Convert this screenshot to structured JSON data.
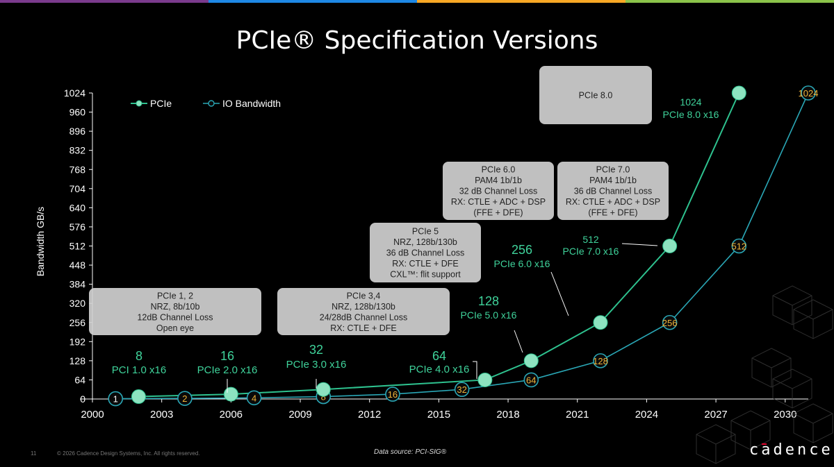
{
  "title": "PCIe® Specification Versions",
  "colors": {
    "topbar": [
      "#7a3a8c",
      "#1e88e5",
      "#f9a825",
      "#8bc34a"
    ],
    "pcie_series": "#2ec28f",
    "pcie_marker": "#8de3c0",
    "io_series": "#2aa7b6",
    "io_label": "#f0b43a",
    "annotation_green": "#3fd39b",
    "callout_bg": "#d0d0d0",
    "callout_text": "#222222"
  },
  "chart_data": {
    "type": "line",
    "title": "PCIe® Specification Versions",
    "xlabel": "",
    "ylabel": "Bandwidth GB/s",
    "xlim": [
      2000,
      2031
    ],
    "ylim": [
      0,
      1024
    ],
    "xticks": [
      2000,
      2003,
      2006,
      2009,
      2012,
      2015,
      2018,
      2021,
      2024,
      2027,
      2030
    ],
    "yticks": [
      0,
      64,
      128,
      192,
      256,
      320,
      384,
      448,
      512,
      576,
      640,
      704,
      768,
      832,
      896,
      960,
      1024
    ],
    "grid": false,
    "legend_position": "top-left",
    "series": [
      {
        "name": "PCIe",
        "x": [
          2002,
          2006,
          2010,
          2017,
          2019,
          2022,
          2025,
          2028
        ],
        "y": [
          8,
          16,
          32,
          64,
          128,
          256,
          512,
          1024
        ]
      },
      {
        "name": "IO Bandwidth",
        "x": [
          2001,
          2004,
          2007,
          2010,
          2013,
          2016,
          2019,
          2022,
          2025,
          2028,
          2031
        ],
        "y": [
          1,
          2,
          4,
          8,
          16,
          32,
          64,
          128,
          256,
          512,
          1024
        ],
        "labels": [
          "1",
          "2",
          "4",
          "8",
          "16",
          "32",
          "64",
          "128",
          "256",
          "512",
          "1024"
        ]
      }
    ],
    "annotations": [
      {
        "value": "8",
        "label": "PCI 1.0 x16"
      },
      {
        "value": "16",
        "label": "PCIe 2.0 x16"
      },
      {
        "value": "32",
        "label": "PCIe 3.0 x16"
      },
      {
        "value": "64",
        "label": "PCIe 4.0 x16"
      },
      {
        "value": "128",
        "label": "PCIe 5.0 x16"
      },
      {
        "value": "256",
        "label": "PCIe 6.0 x16"
      },
      {
        "value": "512",
        "label": "PCIe 7.0 x16"
      },
      {
        "value": "1024",
        "label": "PCIe 8.0 x16"
      }
    ],
    "callouts": [
      {
        "lines": [
          "PCIe 1, 2",
          "NRZ, 8b/10b",
          "12dB Channel Loss",
          "Open eye"
        ]
      },
      {
        "lines": [
          "PCIe 3,4",
          "NRZ, 128b/130b",
          "24/28dB Channel Loss",
          "RX: CTLE + DFE"
        ]
      },
      {
        "lines": [
          "PCIe 5",
          "NRZ, 128b/130b",
          "36 dB Channel Loss",
          "RX: CTLE + DFE",
          "CXL™: flit support"
        ]
      },
      {
        "lines": [
          "PCIe 6.0",
          "PAM4 1b/1b",
          "32 dB Channel Loss",
          "RX: CTLE + ADC + DSP",
          "(FFE + DFE)"
        ]
      },
      {
        "lines": [
          "PCIe 7.0",
          "PAM4 1b/1b",
          "36 dB Channel Loss",
          "RX: CTLE + ADC + DSP",
          "(FFE + DFE)"
        ]
      },
      {
        "lines": [
          "PCIe 8.0"
        ]
      }
    ]
  },
  "footer": {
    "page_number": "11",
    "copyright": "© 2026 Cadence Design Systems, Inc. All rights reserved.",
    "source": "Data source: PCI-SIG®",
    "logo": "cadence"
  }
}
